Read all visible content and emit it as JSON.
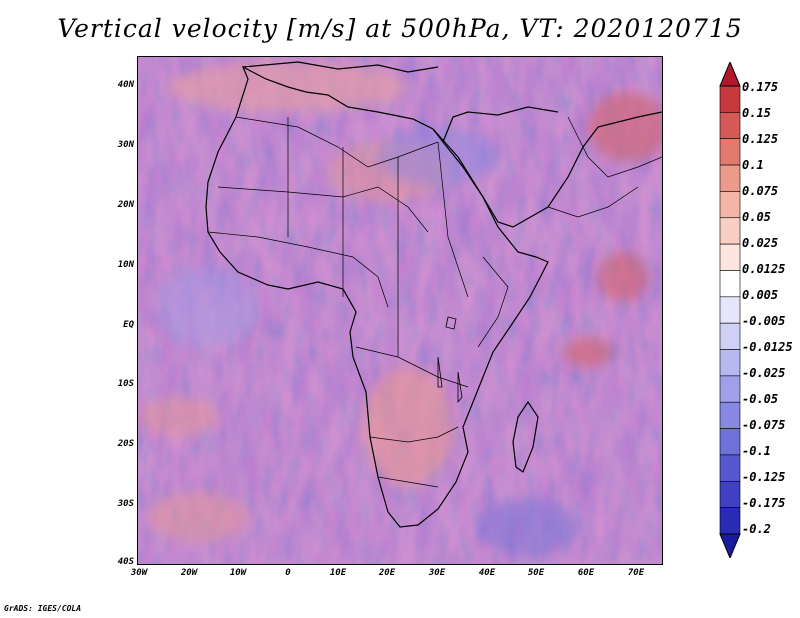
{
  "title": "Vertical velocity [m/s] at 500hPa, VT: 2020120715",
  "credit": "GrADS: IGES/COLA",
  "y_axis_labels": [
    "40N",
    "30N",
    "20N",
    "10N",
    "EQ",
    "10S",
    "20S",
    "30S",
    "40S"
  ],
  "x_axis_labels": [
    "30W",
    "20W",
    "10W",
    "0",
    "10E",
    "20E",
    "30E",
    "40E",
    "50E",
    "60E",
    "70E"
  ],
  "colorbar": {
    "labels": [
      "0.175",
      "0.15",
      "0.125",
      "0.1",
      "0.075",
      "0.05",
      "0.025",
      "0.0125",
      "0.005",
      "-0.005",
      "-0.0125",
      "-0.025",
      "-0.05",
      "-0.075",
      "-0.1",
      "-0.125",
      "-0.175",
      "-0.2"
    ],
    "colors": [
      "#b2182b",
      "#c63a3f",
      "#d65a57",
      "#e27a70",
      "#ec9a8c",
      "#f3b6a6",
      "#f8cfc2",
      "#fce6de",
      "#ffffff",
      "#e6e6fb",
      "#cfd0f6",
      "#b7b8f0",
      "#9fa0e9",
      "#8788e2",
      "#6f70da",
      "#5758d0",
      "#3f40c4",
      "#2a2bb4",
      "#1a1aa0"
    ]
  }
}
